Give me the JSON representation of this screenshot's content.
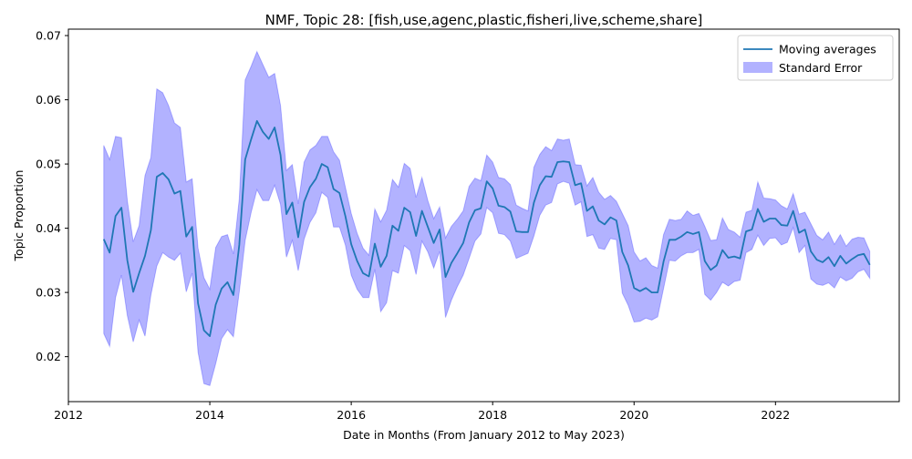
{
  "chart_data": {
    "type": "line",
    "title": "NMF, Topic 28: [fish,use,agenc,plastic,fisheri,live,scheme,share]",
    "xlabel": "Date in Months (From January 2012 to May 2023)",
    "ylabel": "Topic Proportion",
    "xlim": [
      "2012-01",
      "2023-10"
    ],
    "ylim": [
      0.013,
      0.071
    ],
    "x_ticks": [
      {
        "value": "2012-01",
        "label": "2012"
      },
      {
        "value": "2014-01",
        "label": "2014"
      },
      {
        "value": "2016-01",
        "label": "2016"
      },
      {
        "value": "2018-01",
        "label": "2018"
      },
      {
        "value": "2020-01",
        "label": "2020"
      },
      {
        "value": "2022-01",
        "label": "2022"
      }
    ],
    "y_ticks": [
      {
        "value": 0.02,
        "label": "0.02"
      },
      {
        "value": 0.03,
        "label": "0.03"
      },
      {
        "value": 0.04,
        "label": "0.04"
      },
      {
        "value": 0.05,
        "label": "0.05"
      },
      {
        "value": 0.06,
        "label": "0.06"
      },
      {
        "value": 0.07,
        "label": "0.07"
      }
    ],
    "grid": false,
    "legend": {
      "placement": "top-right",
      "entries": [
        {
          "label": "Moving averages",
          "kind": "line",
          "color": "#1f77b4"
        },
        {
          "label": "Standard Error",
          "kind": "patch",
          "color": "#0000ff"
        }
      ]
    },
    "series": [
      {
        "name": "Moving averages",
        "color": "#1f77b4",
        "band_color": "#0000ff",
        "band_opacity": 0.3,
        "x": [
          "2012-07",
          "2012-08",
          "2012-09",
          "2012-10",
          "2012-11",
          "2012-12",
          "2013-01",
          "2013-02",
          "2013-03",
          "2013-04",
          "2013-05",
          "2013-06",
          "2013-07",
          "2013-08",
          "2013-09",
          "2013-10",
          "2013-11",
          "2013-12",
          "2014-01",
          "2014-02",
          "2014-03",
          "2014-04",
          "2014-05",
          "2014-06",
          "2014-07",
          "2014-08",
          "2014-09",
          "2014-10",
          "2014-11",
          "2014-12",
          "2015-01",
          "2015-02",
          "2015-03",
          "2015-04",
          "2015-05",
          "2015-06",
          "2015-07",
          "2015-08",
          "2015-09",
          "2015-10",
          "2015-11",
          "2015-12",
          "2016-01",
          "2016-02",
          "2016-03",
          "2016-04",
          "2016-05",
          "2016-06",
          "2016-07",
          "2016-08",
          "2016-09",
          "2016-10",
          "2016-11",
          "2016-12",
          "2017-01",
          "2017-02",
          "2017-03",
          "2017-04",
          "2017-05",
          "2017-06",
          "2017-07",
          "2017-08",
          "2017-09",
          "2017-10",
          "2017-11",
          "2017-12",
          "2018-01",
          "2018-02",
          "2018-03",
          "2018-04",
          "2018-05",
          "2018-06",
          "2018-07",
          "2018-08",
          "2018-09",
          "2018-10",
          "2018-11",
          "2018-12",
          "2019-01",
          "2019-02",
          "2019-03",
          "2019-04",
          "2019-05",
          "2019-06",
          "2019-07",
          "2019-08",
          "2019-09",
          "2019-10",
          "2019-11",
          "2019-12",
          "2020-01",
          "2020-02",
          "2020-03",
          "2020-04",
          "2020-05",
          "2020-06",
          "2020-07",
          "2020-08",
          "2020-09",
          "2020-10",
          "2020-11",
          "2020-12",
          "2021-01",
          "2021-02",
          "2021-03",
          "2021-04",
          "2021-05",
          "2021-06",
          "2021-07",
          "2021-08",
          "2021-09",
          "2021-10",
          "2021-11",
          "2021-12",
          "2022-01",
          "2022-02",
          "2022-03",
          "2022-04",
          "2022-05",
          "2022-06",
          "2022-07",
          "2022-08",
          "2022-09",
          "2022-10",
          "2022-11",
          "2022-12",
          "2023-01",
          "2023-02",
          "2023-03",
          "2023-04",
          "2023-05"
        ],
        "values": [
          0.0383,
          0.0362,
          0.0419,
          0.0432,
          0.035,
          0.0301,
          0.033,
          0.0357,
          0.0397,
          0.048,
          0.0486,
          0.0476,
          0.0454,
          0.0458,
          0.0387,
          0.0402,
          0.0283,
          0.0241,
          0.0232,
          0.0281,
          0.0306,
          0.0316,
          0.0296,
          0.0374,
          0.0507,
          0.0538,
          0.0567,
          0.055,
          0.0539,
          0.0557,
          0.0514,
          0.0422,
          0.044,
          0.0386,
          0.0441,
          0.0464,
          0.0477,
          0.05,
          0.0495,
          0.0461,
          0.0455,
          0.0419,
          0.0375,
          0.0349,
          0.033,
          0.0325,
          0.0376,
          0.034,
          0.0357,
          0.0404,
          0.0396,
          0.0432,
          0.0425,
          0.0388,
          0.0427,
          0.0402,
          0.0377,
          0.0398,
          0.0324,
          0.0346,
          0.0361,
          0.0377,
          0.0409,
          0.0428,
          0.0431,
          0.0473,
          0.0462,
          0.0435,
          0.0433,
          0.0426,
          0.0395,
          0.0394,
          0.0394,
          0.044,
          0.0467,
          0.0481,
          0.048,
          0.0503,
          0.0504,
          0.0503,
          0.0467,
          0.047,
          0.0427,
          0.0434,
          0.0412,
          0.0406,
          0.0417,
          0.0412,
          0.0363,
          0.0342,
          0.0307,
          0.0302,
          0.0307,
          0.03,
          0.03,
          0.0348,
          0.0382,
          0.0382,
          0.0387,
          0.0394,
          0.0391,
          0.0394,
          0.0349,
          0.0335,
          0.0342,
          0.0366,
          0.0354,
          0.0356,
          0.0353,
          0.0395,
          0.0398,
          0.043,
          0.041,
          0.0415,
          0.0415,
          0.0405,
          0.0404,
          0.0427,
          0.0393,
          0.0398,
          0.0364,
          0.0351,
          0.0347,
          0.0355,
          0.0341,
          0.0357,
          0.0345,
          0.0352,
          0.0358,
          0.036,
          0.0343
        ],
        "lower": [
          0.0236,
          0.0216,
          0.0292,
          0.0327,
          0.0264,
          0.0223,
          0.0257,
          0.0232,
          0.0296,
          0.0341,
          0.0362,
          0.0355,
          0.035,
          0.0361,
          0.0301,
          0.033,
          0.0207,
          0.0158,
          0.0155,
          0.0189,
          0.0228,
          0.0242,
          0.0231,
          0.0301,
          0.0381,
          0.0424,
          0.046,
          0.0443,
          0.0443,
          0.0467,
          0.0437,
          0.0355,
          0.0381,
          0.0334,
          0.0383,
          0.0409,
          0.0424,
          0.0456,
          0.0448,
          0.0402,
          0.0402,
          0.0374,
          0.0327,
          0.0305,
          0.0292,
          0.0292,
          0.0336,
          0.027,
          0.0284,
          0.0334,
          0.033,
          0.0373,
          0.0365,
          0.0328,
          0.038,
          0.0363,
          0.0338,
          0.0364,
          0.0261,
          0.0288,
          0.0309,
          0.0327,
          0.0353,
          0.038,
          0.0391,
          0.0432,
          0.0424,
          0.0392,
          0.039,
          0.038,
          0.0353,
          0.0357,
          0.0361,
          0.0388,
          0.042,
          0.0436,
          0.044,
          0.0469,
          0.0473,
          0.047,
          0.0436,
          0.0441,
          0.0387,
          0.039,
          0.0369,
          0.0367,
          0.0384,
          0.0382,
          0.0299,
          0.028,
          0.0254,
          0.0255,
          0.026,
          0.0257,
          0.0262,
          0.0306,
          0.035,
          0.0349,
          0.0357,
          0.0362,
          0.0362,
          0.0367,
          0.0297,
          0.0288,
          0.03,
          0.0316,
          0.031,
          0.0317,
          0.0319,
          0.0362,
          0.0367,
          0.0389,
          0.0373,
          0.0384,
          0.0385,
          0.0374,
          0.0378,
          0.0401,
          0.0362,
          0.0373,
          0.0321,
          0.0313,
          0.0311,
          0.0315,
          0.0307,
          0.0324,
          0.0318,
          0.0322,
          0.0332,
          0.0336,
          0.0322
        ],
        "upper": [
          0.0529,
          0.0507,
          0.0543,
          0.0541,
          0.0443,
          0.0379,
          0.0404,
          0.0482,
          0.051,
          0.0617,
          0.0611,
          0.0591,
          0.0564,
          0.0557,
          0.0472,
          0.0477,
          0.0369,
          0.0323,
          0.0305,
          0.037,
          0.0387,
          0.039,
          0.036,
          0.0446,
          0.0631,
          0.0652,
          0.0675,
          0.0655,
          0.0635,
          0.0641,
          0.0591,
          0.049,
          0.0499,
          0.0438,
          0.0503,
          0.0522,
          0.0529,
          0.0543,
          0.0543,
          0.0519,
          0.0506,
          0.0464,
          0.0423,
          0.0392,
          0.0369,
          0.0358,
          0.043,
          0.041,
          0.0428,
          0.0476,
          0.0464,
          0.0501,
          0.0493,
          0.0448,
          0.0479,
          0.0443,
          0.0415,
          0.0433,
          0.0385,
          0.0403,
          0.0414,
          0.0427,
          0.0465,
          0.0478,
          0.0474,
          0.0514,
          0.0503,
          0.0479,
          0.0477,
          0.0468,
          0.0436,
          0.0431,
          0.0427,
          0.0495,
          0.0515,
          0.0527,
          0.0521,
          0.0539,
          0.0537,
          0.0539,
          0.0499,
          0.0498,
          0.0466,
          0.0479,
          0.0456,
          0.0445,
          0.0451,
          0.0442,
          0.0423,
          0.0404,
          0.0363,
          0.0349,
          0.0354,
          0.0342,
          0.0338,
          0.039,
          0.0414,
          0.0412,
          0.0414,
          0.0427,
          0.042,
          0.0423,
          0.0403,
          0.0381,
          0.0382,
          0.0416,
          0.0398,
          0.0394,
          0.0386,
          0.0425,
          0.0428,
          0.0472,
          0.0447,
          0.0446,
          0.0444,
          0.0435,
          0.043,
          0.0454,
          0.0422,
          0.0425,
          0.0407,
          0.0389,
          0.0382,
          0.0394,
          0.0375,
          0.039,
          0.0372,
          0.0383,
          0.0386,
          0.0385,
          0.0364
        ]
      }
    ]
  }
}
